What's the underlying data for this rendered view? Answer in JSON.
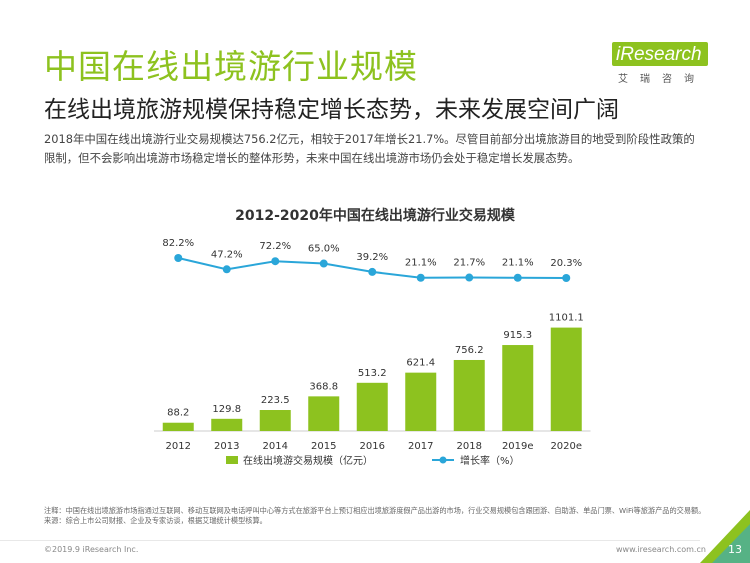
{
  "header": {
    "title": "中国在线出境游行业规模",
    "subtitle": "在线出境旅游规模保持稳定增长态势，未来发展空间广阔",
    "description": "2018年中国在线出境游行业交易规模达756.2亿元，相较于2017年增长21.7%。尽管目前部分出境旅游目的地受到阶段性政策的限制，但不会影响出境游市场稳定增长的整体形势，未来中国在线出境游市场仍会处于稳定增长发展态势。"
  },
  "logo": {
    "name": "iResearch",
    "sub": "艾瑞咨询"
  },
  "chart_data": {
    "type": "bar",
    "title": "2012-2020年中国在线出境游行业交易规模",
    "categories": [
      "2012",
      "2013",
      "2014",
      "2015",
      "2016",
      "2017",
      "2018",
      "2019e",
      "2020e"
    ],
    "series": [
      {
        "name": "在线出境游交易规模（亿元）",
        "type": "bar",
        "color": "#8dc21f",
        "values": [
          88.2,
          129.8,
          223.5,
          368.8,
          513.2,
          621.4,
          756.2,
          915.3,
          1101.1
        ],
        "labels": [
          "88.2",
          "129.8",
          "223.5",
          "368.8",
          "513.2",
          "621.4",
          "756.2",
          "915.3",
          "1101.1"
        ]
      },
      {
        "name": "增长率（%）",
        "type": "line",
        "color": "#2aa6d9",
        "values": [
          82.2,
          47.2,
          72.2,
          65.0,
          39.2,
          21.1,
          21.7,
          21.1,
          20.3
        ],
        "labels": [
          "82.2%",
          "47.2%",
          "72.2%",
          "65.0%",
          "39.2%",
          "21.1%",
          "21.7%",
          "21.1%",
          "20.3%"
        ]
      }
    ],
    "ylim": [
      0,
      1150
    ],
    "legend": "bottom",
    "grid": false
  },
  "footer": {
    "note": "注释：中国在线出境旅游市场指通过互联网、移动互联网及电话呼叫中心等方式在旅游平台上预订相应出境旅游度假产品出游的市场，行业交易规模包含跟团游、自助游、单品门票、WiFi等旅游产品的交易额。",
    "source": "来源：综合上市公司财报、企业及专家访谈，根据艾瑞统计模型核算。",
    "copyright": "©2019.9 iResearch Inc.",
    "url": "www.iresearch.com.cn",
    "page": "13"
  },
  "colors": {
    "brand": "#8dc21f",
    "line": "#2aa6d9"
  }
}
